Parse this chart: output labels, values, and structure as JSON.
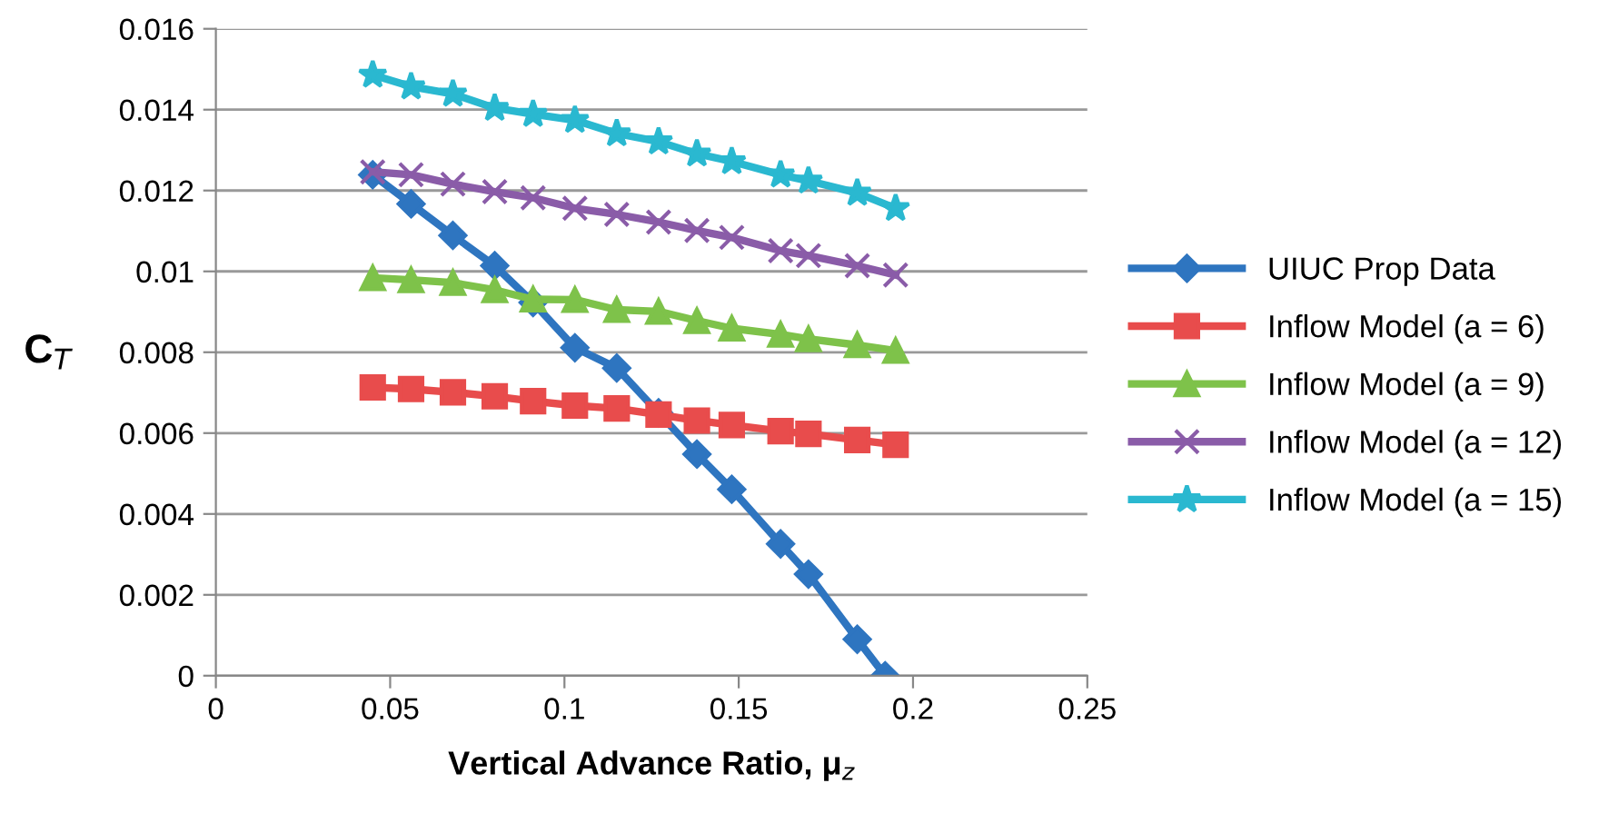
{
  "chart_data": {
    "type": "line",
    "xlabel": "Vertical Advance Ratio, μ$_{z}$",
    "ylabel": "C$_{T}$",
    "x": [
      0.045,
      0.056,
      0.068,
      0.08,
      0.091,
      0.103,
      0.115,
      0.127,
      0.138,
      0.148,
      0.162,
      0.17,
      0.184,
      0.195
    ],
    "series": [
      {
        "name": "UIUC Prop Data",
        "color": "#2e75c0",
        "marker": "diamond",
        "x": [
          0.045,
          0.056,
          0.068,
          0.08,
          0.091,
          0.103,
          0.115,
          0.127,
          0.138,
          0.148,
          0.162,
          0.17,
          0.184,
          0.192
        ],
        "values": [
          0.01239,
          0.01167,
          0.01089,
          0.01014,
          0.00923,
          0.00811,
          0.00761,
          0.0065,
          0.00548,
          0.00461,
          0.00326,
          0.00251,
          0.0009,
          0
        ]
      },
      {
        "name": "Inflow Model (a = 6)",
        "color": "#e84c4c",
        "marker": "square",
        "values": [
          0.00713,
          0.00709,
          0.00701,
          0.00691,
          0.00679,
          0.00668,
          0.00661,
          0.00646,
          0.00631,
          0.0062,
          0.00605,
          0.00598,
          0.00583,
          0.00571
        ]
      },
      {
        "name": "Inflow Model (a = 9)",
        "color": "#7ec24a",
        "marker": "triangle",
        "values": [
          0.00984,
          0.00979,
          0.00972,
          0.00954,
          0.00931,
          0.0093,
          0.00905,
          0.00901,
          0.00878,
          0.00859,
          0.00844,
          0.00833,
          0.00818,
          0.00804
        ]
      },
      {
        "name": "Inflow Model (a = 12)",
        "color": "#8a5ca8",
        "marker": "cross",
        "values": [
          0.01246,
          0.01239,
          0.01216,
          0.01197,
          0.01182,
          0.01156,
          0.01141,
          0.01122,
          0.01101,
          0.01084,
          0.01051,
          0.01039,
          0.01014,
          0.00991
        ]
      },
      {
        "name": "Inflow Model (a = 15)",
        "color": "#2ab8d0",
        "marker": "star",
        "values": [
          0.01486,
          0.01457,
          0.01439,
          0.01404,
          0.01389,
          0.01374,
          0.01341,
          0.01321,
          0.01291,
          0.01272,
          0.01239,
          0.01224,
          0.01194,
          0.01156
        ]
      }
    ],
    "xlim": [
      0,
      0.25
    ],
    "xticks": [
      0,
      0.05,
      0.1,
      0.15,
      0.2,
      0.25
    ],
    "ylim": [
      0,
      0.016
    ],
    "yticks": [
      0,
      0.002,
      0.004,
      0.006,
      0.008,
      0.01,
      0.012,
      0.014,
      0.016
    ],
    "grid": "y",
    "legend": "right"
  }
}
